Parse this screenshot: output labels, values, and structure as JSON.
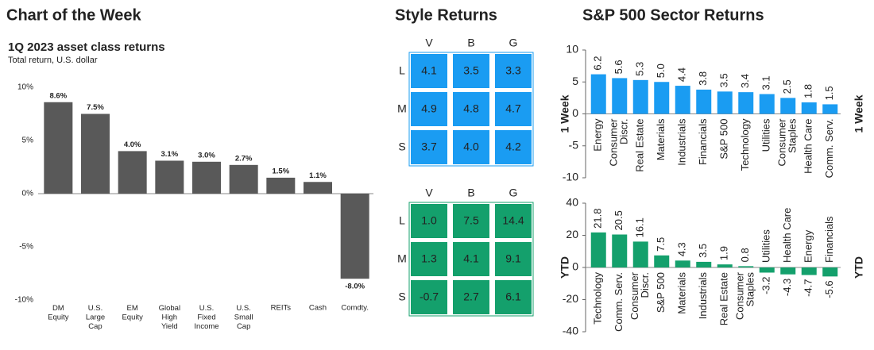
{
  "headers": [
    "Chart of the Week",
    "Style Returns",
    "S&P 500 Sector Returns"
  ],
  "chart_data": [
    {
      "type": "bar",
      "title": "1Q 2023 asset class returns",
      "subtitle": "Total return, U.S. dollar",
      "categories": [
        "DM\nEquity",
        "U.S.\nLarge\nCap",
        "EM\nEquity",
        "Global\nHigh\nYield",
        "U.S.\nFixed\nIncome",
        "U.S.\nSmall\nCap",
        "REITs",
        "Cash",
        "Comdty."
      ],
      "values": [
        8.6,
        7.5,
        4.0,
        3.1,
        3.0,
        2.7,
        1.5,
        1.1,
        -8.0
      ],
      "value_labels": [
        "8.6%",
        "7.5%",
        "4.0%",
        "3.1%",
        "3.0%",
        "2.7%",
        "1.5%",
        "1.1%",
        "-8.0%"
      ],
      "color": "#595959",
      "ylim": [
        -10,
        10
      ],
      "yticks": [
        {
          "value": 10,
          "label": "10%"
        },
        {
          "value": 5,
          "label": "5%"
        },
        {
          "value": 0,
          "label": "0%"
        },
        {
          "value": -5,
          "label": "-5%"
        },
        {
          "value": -10,
          "label": "-10%"
        }
      ],
      "grid": false
    },
    {
      "type": "heatmap",
      "columns": [
        "V",
        "B",
        "G"
      ],
      "rows": [
        "L",
        "M",
        "S"
      ],
      "values": [
        [
          4.1,
          3.5,
          3.3
        ],
        [
          4.9,
          4.8,
          4.7
        ],
        [
          3.7,
          4.0,
          4.2
        ]
      ],
      "value_labels": [
        [
          "4.1",
          "3.5",
          "3.3"
        ],
        [
          "4.9",
          "4.8",
          "4.7"
        ],
        [
          "3.7",
          "4.0",
          "4.2"
        ]
      ],
      "color": "#1a9cf2"
    },
    {
      "type": "heatmap",
      "columns": [
        "V",
        "B",
        "G"
      ],
      "rows": [
        "L",
        "M",
        "S"
      ],
      "values": [
        [
          1.0,
          7.5,
          14.4
        ],
        [
          1.3,
          4.1,
          9.1
        ],
        [
          -0.7,
          2.7,
          6.1
        ]
      ],
      "value_labels": [
        [
          "1.0",
          "7.5",
          "14.4"
        ],
        [
          "1.3",
          "4.1",
          "9.1"
        ],
        [
          "-0.7",
          "2.7",
          "6.1"
        ]
      ],
      "color": "#14a06c"
    },
    {
      "type": "bar",
      "ylabel": "1 Week",
      "categories": [
        "Energy",
        "Consumer\nDiscr.",
        "Real Estate",
        "Materials",
        "Industrials",
        "Financials",
        "S&P 500",
        "Technology",
        "Utilities",
        "Consumer\nStaples",
        "Health Care",
        "Comm. Serv."
      ],
      "values": [
        6.2,
        5.6,
        5.3,
        5.0,
        4.4,
        3.8,
        3.5,
        3.4,
        3.1,
        2.5,
        1.8,
        1.5
      ],
      "value_labels": [
        "6.2",
        "5.6",
        "5.3",
        "5.0",
        "4.4",
        "3.8",
        "3.5",
        "3.4",
        "3.1",
        "2.5",
        "1.8",
        "1.5"
      ],
      "color": "#1a9cf2",
      "ylim": [
        -10,
        10
      ],
      "yticks": [
        -10,
        -5,
        0,
        5,
        10
      ],
      "grid": false
    },
    {
      "type": "bar",
      "ylabel": "YTD",
      "categories": [
        "Technology",
        "Comm. Serv.",
        "Consumer\nDiscr.",
        "S&P 500",
        "Materials",
        "Industrials",
        "Real Estate",
        "Consumer\nStaples",
        "Utilities",
        "Health Care",
        "Energy",
        "Financials"
      ],
      "values": [
        21.8,
        20.5,
        16.1,
        7.5,
        4.3,
        3.5,
        1.9,
        0.8,
        -3.2,
        -4.3,
        -4.7,
        -5.6
      ],
      "value_labels": [
        "21.8",
        "20.5",
        "16.1",
        "7.5",
        "4.3",
        "3.5",
        "1.9",
        "0.8",
        "-3.2",
        "-4.3",
        "-4.7",
        "-5.6"
      ],
      "color": "#14a06c",
      "ylim": [
        -40,
        40
      ],
      "yticks": [
        -40,
        -20,
        0,
        20,
        40
      ],
      "grid": false
    }
  ]
}
